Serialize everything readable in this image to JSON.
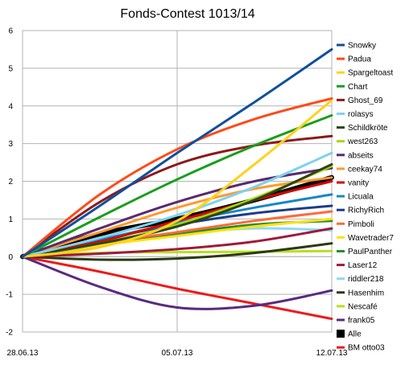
{
  "chart_data": {
    "type": "line",
    "title": "Fonds-Contest 1013/14",
    "xlabel": "",
    "ylabel": "",
    "x_ticks": [
      "28.06.13",
      "05.07.13",
      "12.07.13"
    ],
    "y_ticks": [
      -2,
      -1,
      0,
      1,
      2,
      3,
      4,
      5,
      6
    ],
    "ylim": [
      -2,
      6
    ],
    "grid": true,
    "legend_position": "right",
    "x": [
      0,
      0.25,
      0.5,
      0.75,
      1
    ],
    "series": [
      {
        "name": "Snowky",
        "color": "#0f4f9e",
        "values": [
          0,
          1.35,
          2.75,
          4.1,
          5.5
        ]
      },
      {
        "name": "Padua",
        "color": "#ff4a1a",
        "values": [
          0,
          1.65,
          2.85,
          3.65,
          4.2
        ]
      },
      {
        "name": "Spargeltoast",
        "color": "#ffd21a",
        "values": [
          0,
          0.25,
          0.95,
          2.45,
          4.15
        ]
      },
      {
        "name": "Chart",
        "color": "#1a9e1a",
        "values": [
          0,
          1.05,
          2.05,
          2.95,
          3.75
        ]
      },
      {
        "name": "Ghost_69",
        "color": "#8c1a1a",
        "values": [
          0,
          1.45,
          2.45,
          2.95,
          3.2
        ]
      },
      {
        "name": "rolasys",
        "color": "#7fd2f0",
        "values": [
          0,
          0.5,
          1.1,
          1.85,
          2.75
        ]
      },
      {
        "name": "Schildkröte",
        "color": "#2f4216",
        "values": [
          0,
          0.35,
          0.8,
          1.5,
          2.45
        ]
      },
      {
        "name": "west263",
        "color": "#a5d60f",
        "values": [
          0,
          0.35,
          0.85,
          1.55,
          2.4
        ]
      },
      {
        "name": "abseits",
        "color": "#5a2a6e",
        "values": [
          0,
          0.75,
          1.45,
          2.0,
          2.35
        ]
      },
      {
        "name": "ceekay74",
        "color": "#ff9a30",
        "values": [
          0,
          0.65,
          1.3,
          1.8,
          2.1
        ]
      },
      {
        "name": "vanity",
        "color": "#d80000",
        "values": [
          0,
          0.4,
          0.95,
          1.5,
          2.0
        ]
      },
      {
        "name": "Licuala",
        "color": "#1a86c8",
        "values": [
          0,
          0.45,
          0.9,
          1.3,
          1.65
        ]
      },
      {
        "name": "RichyRich",
        "color": "#1a3c8a",
        "values": [
          0,
          0.45,
          0.85,
          1.15,
          1.35
        ]
      },
      {
        "name": "Pimboli",
        "color": "#ff6a3a",
        "values": [
          0,
          0.35,
          0.65,
          0.95,
          1.2
        ]
      },
      {
        "name": "Wavetrader7",
        "color": "#ffe11a",
        "values": [
          0,
          0.3,
          0.55,
          0.8,
          1.0
        ]
      },
      {
        "name": "PaulPanther",
        "color": "#2a8e2a",
        "values": [
          0,
          0.3,
          0.6,
          0.85,
          0.95
        ]
      },
      {
        "name": "Laser12",
        "color": "#9e1a3a",
        "values": [
          0,
          0.08,
          0.2,
          0.4,
          0.75
        ]
      },
      {
        "name": "riddler218",
        "color": "#8fd8f5",
        "values": [
          0,
          0.3,
          0.6,
          0.75,
          0.7
        ]
      },
      {
        "name": "Hasenhim",
        "color": "#2a3a12",
        "values": [
          0,
          -0.08,
          -0.05,
          0.1,
          0.35
        ]
      },
      {
        "name": "Nescafé",
        "color": "#b8de20",
        "values": [
          0,
          0.1,
          0.12,
          0.13,
          0.15
        ]
      },
      {
        "name": "frank05",
        "color": "#5a2a80",
        "values": [
          0,
          -0.8,
          -1.35,
          -1.3,
          -0.9
        ]
      },
      {
        "name": "Alle",
        "color": "#000000",
        "values": [
          0,
          0.6,
          1.0,
          1.5,
          2.1
        ]
      },
      {
        "name": "BM otto03",
        "color": "#ee1a1a",
        "values": [
          0,
          -0.4,
          -0.85,
          -1.25,
          -1.65
        ]
      }
    ]
  }
}
